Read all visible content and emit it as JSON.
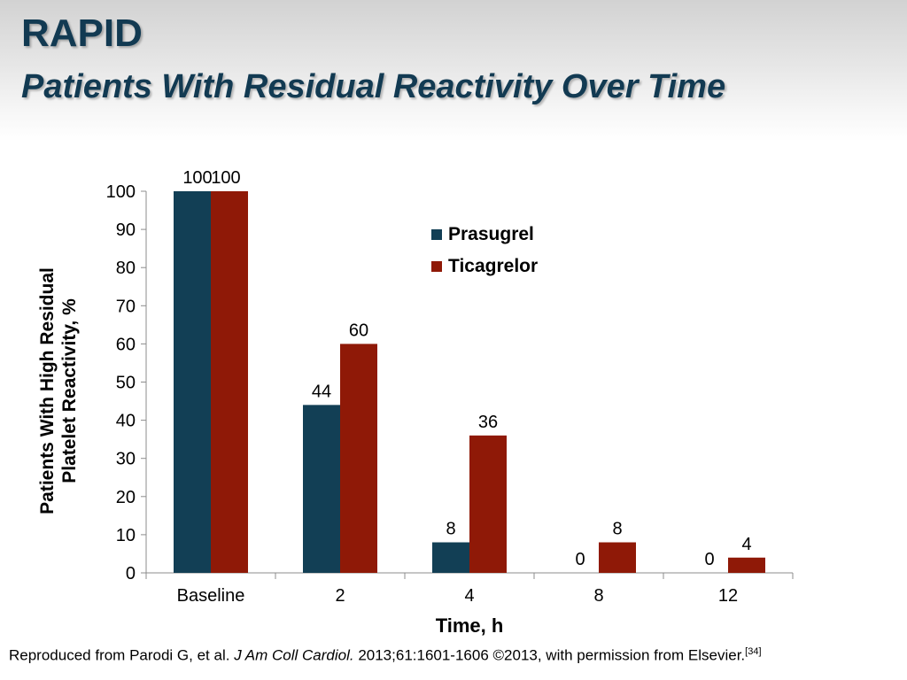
{
  "slide": {
    "title": "RAPID",
    "subtitle": "Patients With Residual Reactivity Over Time"
  },
  "citation": {
    "prefix": "Reproduced from Parodi G, et al. ",
    "journal": "J Am Coll Cardiol.",
    "suffix": " 2013;61:1601-1606 ©2013, with permission from Elsevier.",
    "ref": "[34]"
  },
  "colors": {
    "prasugrel": "#123f55",
    "ticagrelor": "#8f1907",
    "title": "#123a52"
  },
  "chart_data": {
    "type": "bar",
    "title": "",
    "xlabel": "Time, h",
    "ylabel_line1": "Patients With High Residual",
    "ylabel_line2": "Platelet Reactivity, %",
    "categories": [
      "Baseline",
      "2",
      "4",
      "8",
      "12"
    ],
    "ylim": [
      0,
      100
    ],
    "yticks": [
      "0",
      "10",
      "20",
      "30",
      "40",
      "50",
      "60",
      "70",
      "80",
      "90",
      "100"
    ],
    "grid": false,
    "legend_position": "top-right",
    "series": [
      {
        "name": "Prasugrel",
        "values": [
          100,
          44,
          8,
          0,
          0
        ],
        "labels": [
          "100",
          "44",
          "8",
          "0",
          "0"
        ]
      },
      {
        "name": "Ticagrelor",
        "values": [
          100,
          60,
          36,
          8,
          4
        ],
        "labels": [
          "100",
          "60",
          "36",
          "8",
          "4"
        ]
      }
    ]
  }
}
